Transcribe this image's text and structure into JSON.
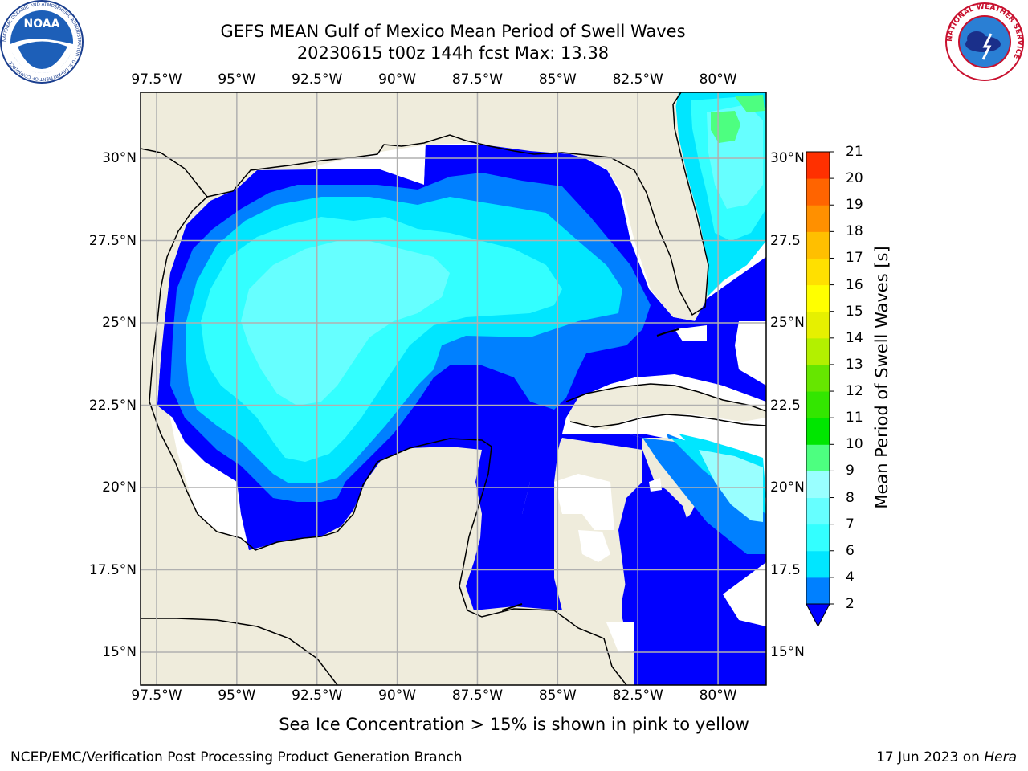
{
  "header": {
    "title_line1": "GEFS MEAN Gulf of Mexico Mean Period of Swell Waves",
    "title_line2": "20230615 t00z 144h fcst   Max: 13.38"
  },
  "logos": {
    "left": {
      "name": "NOAA",
      "text": "NOAA",
      "ring_text": "NATIONAL OCEANIC AND ATMOSPHERIC ADMINISTRATION · U.S. DEPARTMENT OF COMMERCE"
    },
    "right": {
      "name": "National Weather Service",
      "ring_text": "NATIONAL WEATHER SERVICE"
    }
  },
  "map": {
    "lon_range": [
      -98.0,
      -78.5
    ],
    "lat_range": [
      14.0,
      32.0
    ],
    "lon_ticks": [
      -97.5,
      -95,
      -92.5,
      -90,
      -87.5,
      -85,
      -82.5,
      -80
    ],
    "lat_ticks": [
      15,
      17.5,
      20,
      22.5,
      25,
      27.5,
      30
    ],
    "x_tick_labels": [
      "97.5°W",
      "95°W",
      "92.5°W",
      "90°W",
      "87.5°W",
      "85°W",
      "82.5°W",
      "80°W"
    ],
    "y_tick_labels_left": [
      "15°N",
      "17.5°N",
      "20°N",
      "22.5°N",
      "25°N",
      "27.5°N",
      "30°N"
    ],
    "y_tick_labels_right": [
      "15°N",
      "17.5",
      "20°N",
      "22.5",
      "25°N",
      "27.5",
      "30°N"
    ],
    "gridlines": true,
    "land_color": "#efecdc",
    "no_data_color": "#ffffff"
  },
  "colorbar": {
    "label": "Mean Period of Swell Waves [s]",
    "extend": "min",
    "levels": [
      "2",
      "4",
      "6",
      "7",
      "8",
      "9",
      "10",
      "11",
      "12",
      "13",
      "14",
      "15",
      "16",
      "17",
      "18",
      "19",
      "20",
      "21"
    ],
    "colors": [
      "#0080ff",
      "#00e6ff",
      "#33ffff",
      "#66ffff",
      "#99ffff",
      "#4dff80",
      "#00e600",
      "#33e600",
      "#66e600",
      "#b3f000",
      "#e6f000",
      "#ffff00",
      "#ffe000",
      "#ffbf00",
      "#ff9000",
      "#ff6400",
      "#ff3000"
    ],
    "under_color": "#0000ff"
  },
  "footer": {
    "note": "Sea Ice Concentration > 15% is shown in pink to yellow",
    "credit": "NCEP/EMC/Verification Post Processing Product Generation Branch",
    "date": "17 Jun 2023 on ",
    "machine": "Hera"
  }
}
